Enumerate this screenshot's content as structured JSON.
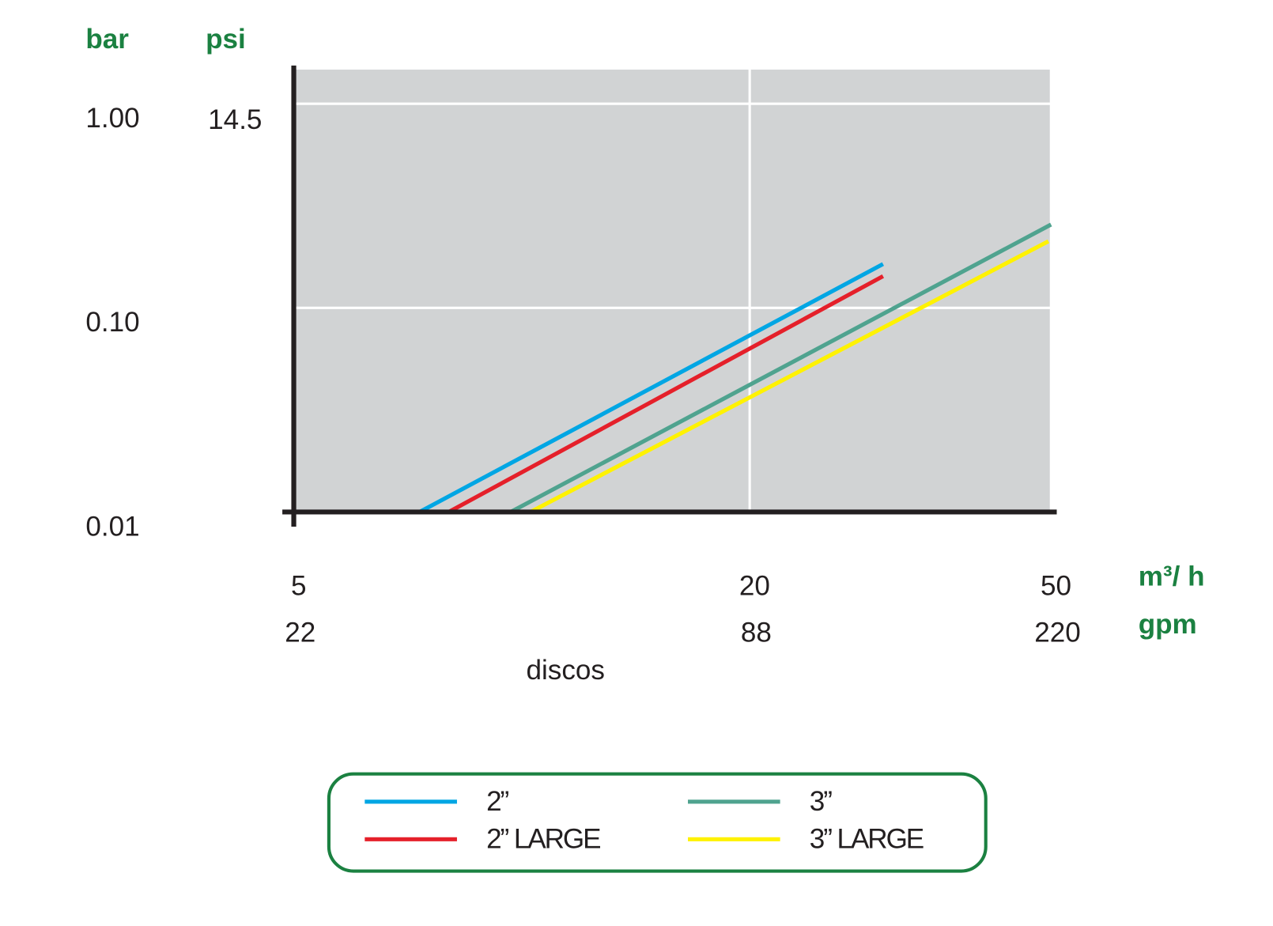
{
  "chart_data": {
    "type": "line",
    "x_label": "discos",
    "y_unit": "bar",
    "y2_unit": "psi",
    "x_unit": "m³/ h",
    "x2_unit": "gpm",
    "log_x": true,
    "log_y": true,
    "grid": true,
    "plot_background": "#d1d3d4",
    "xlim": [
      5,
      50
    ],
    "xticks": [
      5,
      20,
      50
    ],
    "x2lim": [
      22,
      220
    ],
    "x2ticks": [
      22,
      88,
      220
    ],
    "ylim": [
      0.01,
      1.47
    ],
    "yticks": [
      {
        "value": 0.01,
        "label": "0.01"
      },
      {
        "value": 0.1,
        "label": "0.10"
      },
      {
        "value": 1,
        "label": "1.00"
      }
    ],
    "y2lim": [
      0.145,
      21.3
    ],
    "y2ticks": [
      14.5
    ],
    "series": [
      {
        "name": "2”",
        "color": "#00a6e4",
        "x": [
          7.33,
          30.0
        ],
        "values": [
          0.01,
          0.164
        ]
      },
      {
        "name": "2” LARGE",
        "color": "#e5202a",
        "x": [
          8.01,
          30.0
        ],
        "values": [
          0.01,
          0.143
        ]
      },
      {
        "name": "3”",
        "color": "#4fa38f",
        "x": [
          9.67,
          50
        ],
        "values": [
          0.01,
          0.256
        ]
      },
      {
        "name": "3” LARGE",
        "color": "#fff200",
        "x": [
          10.27,
          49.6
        ],
        "values": [
          0.01,
          0.212
        ]
      }
    ]
  }
}
